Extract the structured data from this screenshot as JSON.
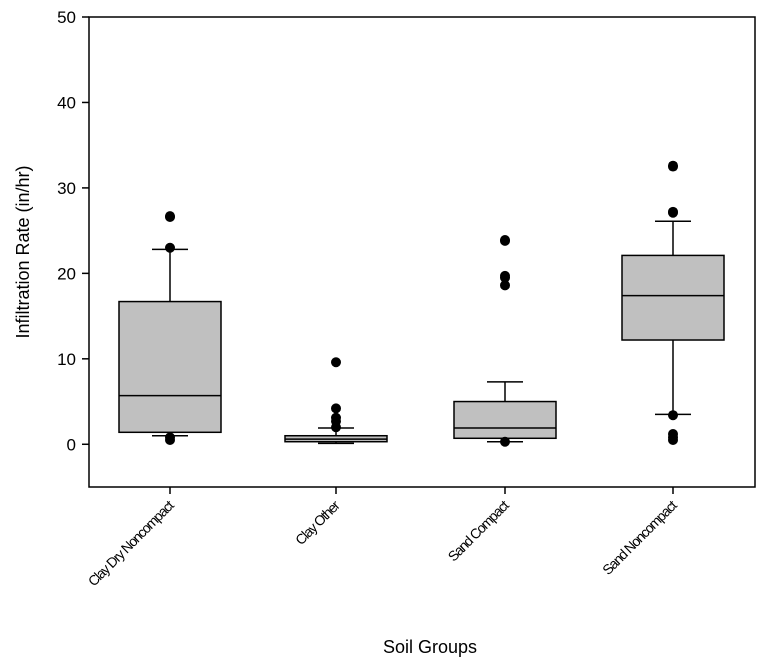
{
  "chart_data": {
    "type": "boxplot",
    "xlabel": "Soil Groups",
    "ylabel": "Infiltration Rate (in/hr)",
    "ylim": [
      -5,
      50
    ],
    "yticks": [
      0,
      10,
      20,
      30,
      40,
      50
    ],
    "grid": false,
    "categories": [
      "Clay Dry Noncompact",
      "Clay Other",
      "Sand Compact",
      "Sand Noncompact"
    ],
    "boxes": [
      {
        "q1": 1.4,
        "median": 5.7,
        "q3": 16.7,
        "whisker_low": 1.0,
        "whisker_high": 22.8,
        "outliers": [
          0.5,
          0.8,
          23.0,
          26.6,
          26.7
        ]
      },
      {
        "q1": 0.3,
        "median": 0.6,
        "q3": 1.0,
        "whisker_low": 0.1,
        "whisker_high": 1.9,
        "outliers": [
          2.0,
          2.7,
          3.1,
          4.2,
          9.6
        ]
      },
      {
        "q1": 0.7,
        "median": 1.9,
        "q3": 5.0,
        "whisker_low": 0.3,
        "whisker_high": 7.3,
        "outliers": [
          0.3,
          18.6,
          19.5,
          19.7,
          23.8,
          23.9
        ]
      },
      {
        "q1": 12.2,
        "median": 17.4,
        "q3": 22.1,
        "whisker_low": 3.5,
        "whisker_high": 26.1,
        "outliers": [
          0.5,
          0.8,
          1.2,
          3.4,
          27.1,
          27.2,
          32.5,
          32.6
        ]
      }
    ]
  }
}
